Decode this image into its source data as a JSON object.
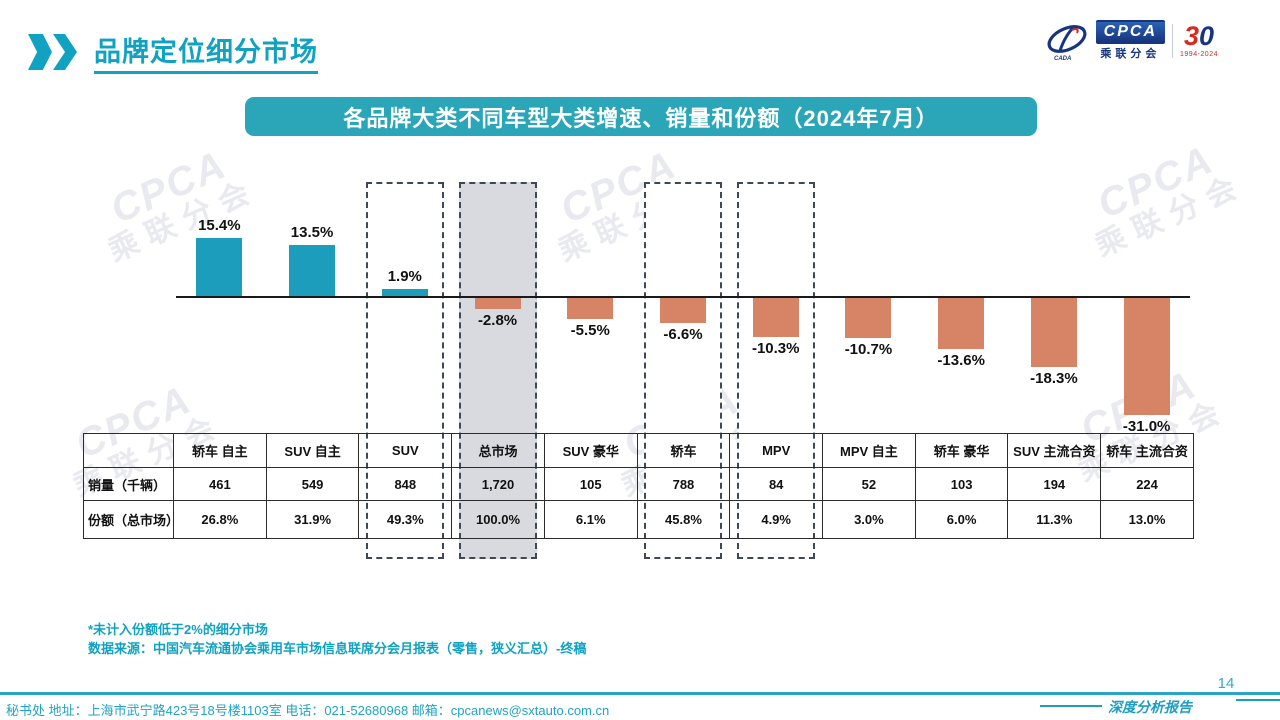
{
  "header": {
    "title": "品牌定位细分市场"
  },
  "logo": {
    "brand": "CPCA",
    "brand_cn": "乘联分会",
    "emblem": "cpca-swoosh",
    "anniversary_3": "3",
    "anniversary_0": "0",
    "anniversary_years": "1994-2024"
  },
  "banner": {
    "title": "各品牌大类不同车型大类增速、销量和份额（2024年7月）"
  },
  "chart_data": {
    "type": "bar",
    "title": "各品牌大类不同车型大类增速、销量和份额（2024年7月）",
    "categories": [
      "轿车 自主",
      "SUV 自主",
      "SUV",
      "总市场",
      "SUV 豪华",
      "轿车",
      "MPV",
      "MPV 自主",
      "轿车 豪华",
      "SUV 主流合资",
      "轿车 主流合资"
    ],
    "values": [
      15.4,
      13.5,
      1.9,
      -2.8,
      -5.5,
      -6.6,
      -10.3,
      -10.7,
      -13.6,
      -18.3,
      -31.0
    ],
    "value_labels": [
      "15.4%",
      "13.5%",
      "1.9%",
      "-2.8%",
      "-5.5%",
      "-6.6%",
      "-10.3%",
      "-10.7%",
      "-13.6%",
      "-18.3%",
      "-31.0%"
    ],
    "highlighted_categories": [
      "SUV",
      "总市场",
      "轿车",
      "MPV"
    ],
    "highlight_filled_category": "总市场",
    "xlabel": "",
    "ylabel": "增速",
    "ylim": [
      -35,
      20
    ],
    "grid": false,
    "legend": "none",
    "positive_color": "#1b9dbb",
    "negative_color": "#d68465"
  },
  "table": {
    "row_headers": [
      "销量（千辆）",
      "份额（总市场）"
    ],
    "columns": [
      "轿车 自主",
      "SUV 自主",
      "SUV",
      "总市场",
      "SUV 豪华",
      "轿车",
      "MPV",
      "MPV 自主",
      "轿车 豪华",
      "SUV 主流合资",
      "轿车 主流合资"
    ],
    "rows": [
      [
        "461",
        "549",
        "848",
        "1,720",
        "105",
        "788",
        "84",
        "52",
        "103",
        "194",
        "224"
      ],
      [
        "26.8%",
        "31.9%",
        "49.3%",
        "100.0%",
        "6.1%",
        "45.8%",
        "4.9%",
        "3.0%",
        "6.0%",
        "11.3%",
        "13.0%"
      ]
    ]
  },
  "footnotes": [
    "*未计入份额低于2%的细分市场",
    "数据来源：中国汽车流通协会乘用车市场信息联席分会月报表（零售，狭义汇总）-终稿"
  ],
  "footer": {
    "secretariat": "秘书处  地址：上海市武宁路423号18号楼1103室  电话：021-52680968   邮箱：cpcanews@sxtauto.com.cn",
    "page_number": "14",
    "report_label": "深度分析报告"
  },
  "watermark": {
    "text_en": "CPCA",
    "text_cn": "乘联分会"
  },
  "colors": {
    "accent_teal": "#10a2c0",
    "banner_teal": "#2aa6b8",
    "bar_positive": "#1b9dbb",
    "bar_negative": "#d68465",
    "highlight_fill": "#d9d9e0",
    "dashed_border": "#3f4854",
    "logo_blue": "#17357f",
    "logo_red": "#d42b1e"
  }
}
